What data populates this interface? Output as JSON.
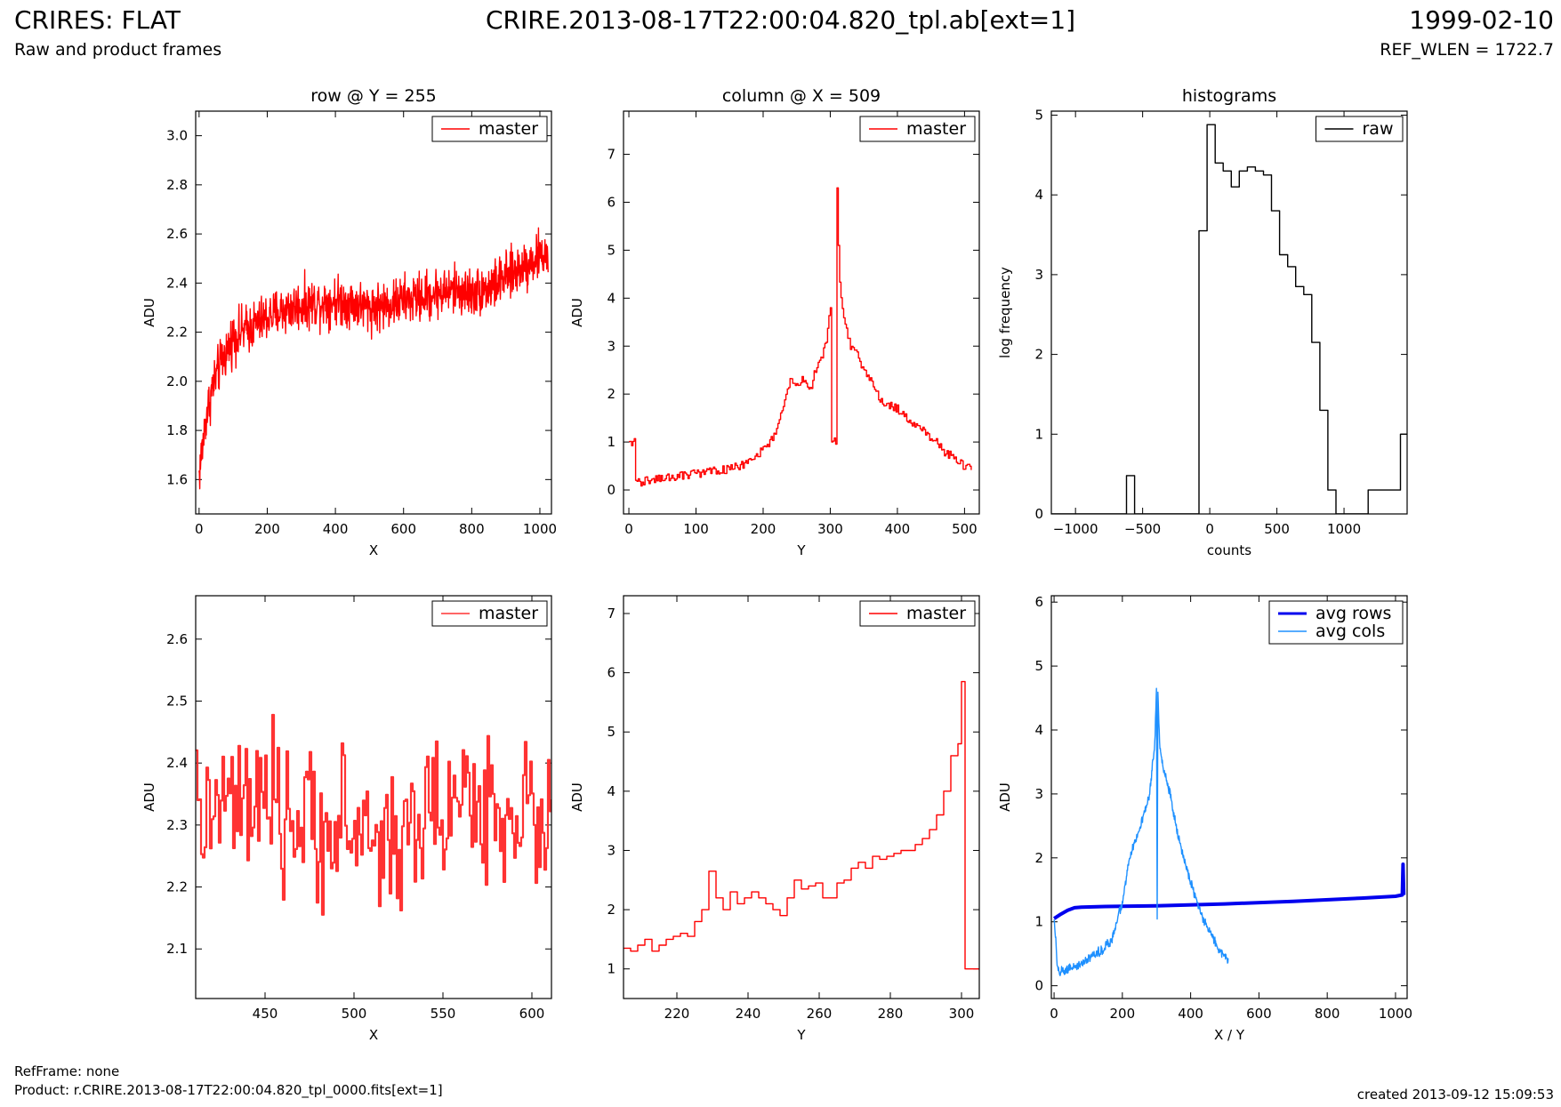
{
  "header": {
    "title_left": "CRIRES: FLAT",
    "subtitle_left": "Raw and product frames",
    "title_center": "CRIRE.2013-08-17T22:00:04.820_tpl.ab[ext=1]",
    "title_right": "1999-02-10",
    "subtitle_right": "REF_WLEN = 1722.7"
  },
  "footer": {
    "ref_frame": "RefFrame: none",
    "product": "Product: r.CRIRE.2013-08-17T22:00:04.820_tpl_0000.fits[ext=1]",
    "created": "created 2013-09-12 15:09:53"
  },
  "chart_data": [
    {
      "type": "line",
      "title": "row @ Y = 255",
      "xlabel": "X",
      "ylabel": "ADU",
      "xlim": [
        -10,
        1034
      ],
      "ylim": [
        1.46,
        3.1
      ],
      "xticks": [
        0,
        200,
        400,
        600,
        800,
        1000
      ],
      "yticks": [
        1.6,
        1.8,
        2.0,
        2.2,
        2.4,
        2.6,
        2.8,
        3.0
      ],
      "ytick_labels": [
        "1.6",
        "1.8",
        "2.0",
        "2.2",
        "2.4",
        "2.6",
        "2.8",
        "3.0"
      ],
      "legend": "top-right",
      "series": [
        {
          "name": "master",
          "color": "#ff0000",
          "style": "noisy",
          "x": [
            0,
            20,
            40,
            60,
            100,
            150,
            200,
            250,
            300,
            350,
            400,
            450,
            500,
            550,
            600,
            650,
            700,
            750,
            800,
            850,
            900,
            950,
            1000,
            1024
          ],
          "values": [
            1.62,
            1.85,
            1.98,
            2.06,
            2.18,
            2.22,
            2.26,
            2.29,
            2.31,
            2.32,
            2.33,
            2.32,
            2.3,
            2.31,
            2.33,
            2.34,
            2.36,
            2.37,
            2.36,
            2.38,
            2.42,
            2.47,
            2.51,
            2.52
          ],
          "noise": 0.07
        }
      ]
    },
    {
      "type": "line",
      "title": "column @ X = 509",
      "xlabel": "Y",
      "ylabel": "ADU",
      "xlim": [
        -8,
        522
      ],
      "ylim": [
        -0.5,
        7.9
      ],
      "xticks": [
        0,
        100,
        200,
        300,
        400,
        500
      ],
      "yticks": [
        0,
        1,
        2,
        3,
        4,
        5,
        6,
        7
      ],
      "legend": "top-right",
      "series": [
        {
          "name": "master",
          "color": "#ff0000",
          "style": "step",
          "x": [
            0,
            8,
            9,
            20,
            50,
            80,
            110,
            140,
            170,
            190,
            210,
            220,
            230,
            240,
            250,
            260,
            270,
            280,
            290,
            295,
            300,
            301,
            309,
            310,
            313,
            316,
            320,
            325,
            330,
            340,
            350,
            360,
            370,
            380,
            390,
            400,
            410,
            420,
            430,
            440,
            450,
            460,
            470,
            480,
            490,
            500,
            511
          ],
          "values": [
            1.0,
            1.0,
            0.15,
            0.18,
            0.24,
            0.3,
            0.36,
            0.42,
            0.52,
            0.7,
            1.0,
            1.3,
            1.7,
            2.3,
            2.2,
            2.3,
            2.1,
            2.6,
            2.9,
            3.2,
            3.8,
            1.0,
            1.0,
            6.3,
            4.5,
            4.0,
            3.6,
            3.3,
            3.0,
            2.8,
            2.5,
            2.3,
            2.0,
            1.8,
            1.75,
            1.7,
            1.55,
            1.4,
            1.3,
            1.2,
            1.1,
            0.95,
            0.8,
            0.7,
            0.6,
            0.5,
            0.4
          ],
          "noise": 0.06
        }
      ]
    },
    {
      "type": "line",
      "title": "histograms",
      "xlabel": "counts",
      "ylabel": "log frequency",
      "xlim": [
        -1180,
        1470
      ],
      "ylim": [
        0,
        5.05
      ],
      "xticks": [
        -1000,
        -500,
        0,
        500,
        1000
      ],
      "yticks": [
        0,
        1,
        2,
        3,
        4,
        5
      ],
      "legend": "top-right",
      "series": [
        {
          "name": "raw",
          "color": "#000000",
          "style": "histstep",
          "x": [
            -1180,
            -620,
            -560,
            -80,
            -20,
            40,
            100,
            160,
            220,
            280,
            340,
            400,
            460,
            520,
            580,
            640,
            700,
            760,
            820,
            880,
            940,
            1000,
            1060,
            1120,
            1180,
            1240,
            1300,
            1360,
            1420,
            1470
          ],
          "values": [
            0,
            0.48,
            0,
            3.55,
            4.88,
            4.4,
            4.3,
            4.1,
            4.3,
            4.35,
            4.3,
            4.25,
            3.8,
            3.25,
            3.1,
            2.85,
            2.75,
            2.15,
            1.3,
            0.3,
            0,
            0,
            0,
            0,
            0.3,
            0.3,
            0.3,
            0.3,
            1.0,
            1.0
          ]
        }
      ]
    },
    {
      "type": "line",
      "title": "",
      "xlabel": "X",
      "ylabel": "ADU",
      "xlim": [
        411,
        611
      ],
      "ylim": [
        2.02,
        2.67
      ],
      "xticks": [
        450,
        500,
        550,
        600
      ],
      "yticks": [
        2.1,
        2.2,
        2.3,
        2.4,
        2.5,
        2.6
      ],
      "legend": "top-right",
      "series": [
        {
          "name": "master",
          "color": "#ff3333",
          "style": "noisystep",
          "x": [
            411,
            430,
            450,
            470,
            490,
            510,
            520,
            530,
            550,
            560,
            580,
            600,
            611
          ],
          "values": [
            2.31,
            2.33,
            2.32,
            2.3,
            2.3,
            2.28,
            2.27,
            2.29,
            2.33,
            2.34,
            2.33,
            2.31,
            2.3
          ],
          "noise": 0.085
        }
      ]
    },
    {
      "type": "line",
      "title": "",
      "xlabel": "Y",
      "ylabel": "ADU",
      "xlim": [
        205,
        305
      ],
      "ylim": [
        0.5,
        7.3
      ],
      "xticks": [
        220,
        240,
        260,
        280,
        300
      ],
      "yticks": [
        1,
        2,
        3,
        4,
        5,
        6,
        7
      ],
      "legend": "top-right",
      "series": [
        {
          "name": "master",
          "color": "#ff0000",
          "style": "step",
          "x": [
            205,
            207,
            209,
            211,
            213,
            215,
            217,
            219,
            221,
            223,
            225,
            227,
            229,
            231,
            233,
            235,
            237,
            239,
            241,
            243,
            245,
            247,
            249,
            251,
            253,
            255,
            257,
            259,
            261,
            263,
            265,
            267,
            269,
            271,
            273,
            275,
            277,
            279,
            281,
            283,
            285,
            287,
            289,
            291,
            293,
            295,
            297,
            299,
            300,
            301,
            302,
            305
          ],
          "values": [
            1.35,
            1.3,
            1.4,
            1.5,
            1.3,
            1.4,
            1.5,
            1.55,
            1.6,
            1.55,
            1.8,
            2.0,
            2.65,
            2.2,
            2.0,
            2.3,
            2.1,
            2.2,
            2.3,
            2.2,
            2.1,
            2.0,
            1.9,
            2.2,
            2.5,
            2.35,
            2.4,
            2.45,
            2.2,
            2.2,
            2.45,
            2.5,
            2.7,
            2.8,
            2.7,
            2.9,
            2.85,
            2.9,
            2.95,
            3.0,
            3.0,
            3.1,
            3.2,
            3.35,
            3.6,
            4.0,
            4.6,
            4.8,
            5.85,
            1.0,
            1.0,
            1.0
          ]
        }
      ]
    },
    {
      "type": "line",
      "title": "",
      "xlabel": "X / Y",
      "ylabel": "ADU",
      "xlim": [
        -8,
        1034
      ],
      "ylim": [
        -0.2,
        6.1
      ],
      "xticks": [
        0,
        200,
        400,
        600,
        800,
        1000
      ],
      "yticks": [
        0,
        1,
        2,
        3,
        4,
        5,
        6
      ],
      "legend": "top-right",
      "series": [
        {
          "name": "avg rows",
          "color": "#0000ee",
          "style": "thick",
          "x": [
            0,
            20,
            40,
            60,
            80,
            150,
            300,
            500,
            700,
            900,
            1000,
            1020,
            1022,
            1024
          ],
          "values": [
            1.05,
            1.12,
            1.18,
            1.22,
            1.23,
            1.24,
            1.25,
            1.28,
            1.32,
            1.37,
            1.4,
            1.42,
            1.9,
            1.42
          ]
        },
        {
          "name": "avg cols",
          "color": "#1e90ff",
          "style": "noisy",
          "x": [
            0,
            5,
            10,
            15,
            30,
            60,
            100,
            140,
            170,
            200,
            220,
            240,
            260,
            280,
            295,
            300,
            302,
            304,
            306,
            310,
            320,
            340,
            360,
            380,
            400,
            420,
            440,
            460,
            480,
            500,
            510
          ],
          "values": [
            1.0,
            0.7,
            0.3,
            0.2,
            0.22,
            0.3,
            0.42,
            0.55,
            0.75,
            1.3,
            2.0,
            2.3,
            2.6,
            3.0,
            3.8,
            4.7,
            1.0,
            4.6,
            4.3,
            3.7,
            3.4,
            3.0,
            2.4,
            2.0,
            1.6,
            1.3,
            1.0,
            0.8,
            0.6,
            0.45,
            0.4
          ],
          "noise": 0.05
        }
      ]
    }
  ]
}
